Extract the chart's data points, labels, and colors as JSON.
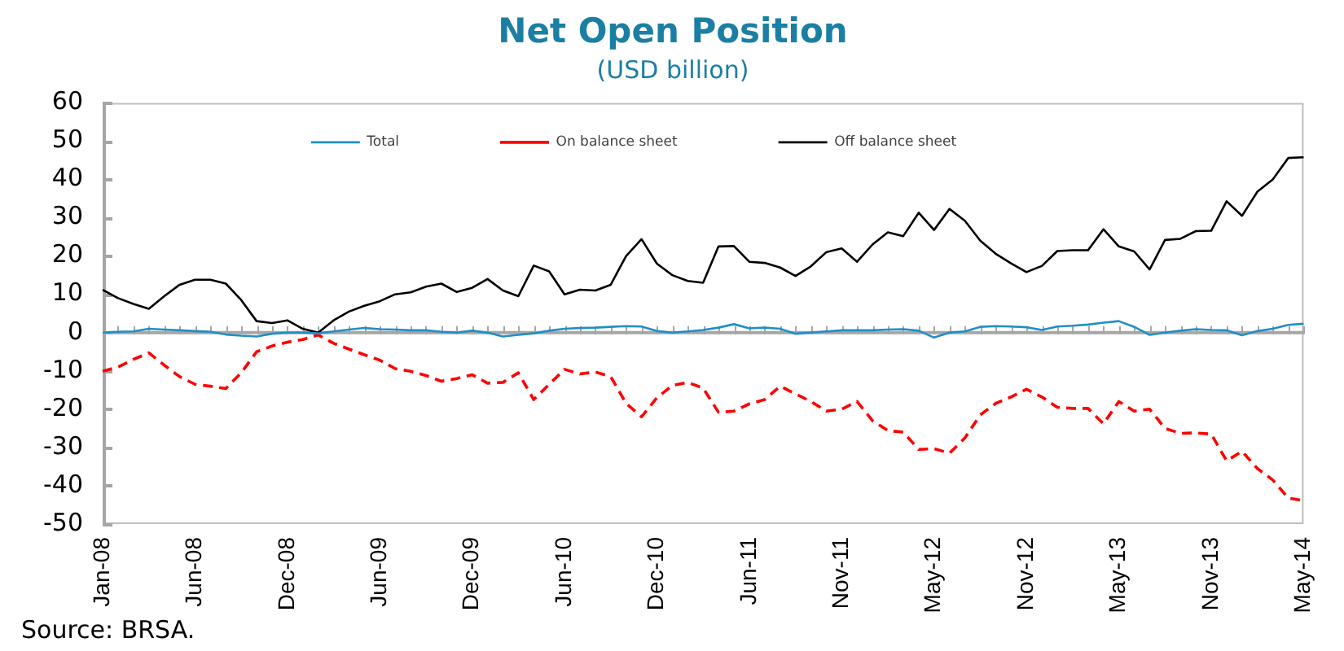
{
  "chart_data": {
    "type": "line",
    "title": "Net Open Position",
    "subtitle": "(USD billion)",
    "categories": [
      "Jan-08",
      null,
      null,
      null,
      null,
      null,
      "Jun-08",
      null,
      null,
      null,
      null,
      null,
      "Dec-08",
      null,
      null,
      null,
      null,
      null,
      "Jun-09",
      null,
      null,
      null,
      null,
      null,
      "Dec-09",
      null,
      null,
      null,
      null,
      null,
      "Jun-10",
      null,
      null,
      null,
      null,
      null,
      "Dec-10",
      null,
      null,
      null,
      null,
      null,
      "Jun-11",
      null,
      null,
      null,
      null,
      null,
      "Nov-11",
      null,
      null,
      null,
      null,
      null,
      "May-12",
      null,
      null,
      null,
      null,
      null,
      "Nov-12",
      null,
      null,
      null,
      null,
      null,
      "May-13",
      null,
      null,
      null,
      null,
      null,
      "Nov-13",
      null,
      null,
      null,
      null,
      null,
      "May-14"
    ],
    "series": [
      {
        "name": "Total",
        "color": "#1f8fc4",
        "line_style": "solid",
        "values": [
          0,
          0.2,
          0.3,
          1,
          0.8,
          0.6,
          0.4,
          0.2,
          -0.5,
          -0.8,
          -1,
          -0.3,
          0,
          0,
          -0.2,
          0.3,
          0.8,
          1.2,
          0.9,
          0.8,
          0.6,
          0.6,
          0.2,
          0,
          0.5,
          0,
          -1,
          -0.6,
          -0.2,
          0.5,
          1,
          1.2,
          1.3,
          1.5,
          1.7,
          1.6,
          0.4,
          0,
          0.3,
          0.7,
          1.3,
          2.2,
          1.1,
          1.3,
          1,
          -0.3,
          0,
          0.3,
          0.6,
          0.6,
          0.6,
          0.8,
          0.9,
          0.5,
          -1.3,
          0,
          0.3,
          1.5,
          1.7,
          1.6,
          1.4,
          0.7,
          1.6,
          1.8,
          2.1,
          2.6,
          3,
          1.5,
          -0.6,
          0,
          0.5,
          0.9,
          0.7,
          0.6,
          -0.7,
          0.4,
          1,
          2,
          2.3
        ]
      },
      {
        "name": "On balance sheet",
        "color": "#ff0000",
        "line_style": "dashed",
        "values": [
          -10.1,
          -9,
          -7,
          -5.3,
          -8.5,
          -11.5,
          -13.5,
          -14,
          -14.6,
          -10.5,
          -5,
          -3.5,
          -2.5,
          -1.8,
          -0.6,
          -2.8,
          -4.3,
          -5.8,
          -7.2,
          -9.4,
          -10.1,
          -11.2,
          -12.7,
          -12,
          -11,
          -13.2,
          -13,
          -10.5,
          -17.5,
          -13.5,
          -9.6,
          -10.8,
          -10.3,
          -11.5,
          -18.5,
          -22,
          -17,
          -13.8,
          -13,
          -14.5,
          -20.8,
          -20.5,
          -18.6,
          -17.5,
          -14,
          -16,
          -18,
          -20.5,
          -20,
          -18,
          -23,
          -25.6,
          -26,
          -30.5,
          -30.3,
          -31.5,
          -27.5,
          -21.5,
          -18.5,
          -16.8,
          -14.8,
          -16.8,
          -19.5,
          -19.8,
          -19.8,
          -23.8,
          -18,
          -20.5,
          -20,
          -25,
          -26.3,
          -26.2,
          -26.5,
          -33.5,
          -31,
          -35.5,
          -38.5,
          -43.2,
          -43.9
        ]
      },
      {
        "name": "Off balance sheet",
        "color": "#000000",
        "line_style": "solid",
        "values": [
          11.2,
          9,
          7.5,
          6.2,
          9.5,
          12.5,
          13.8,
          13.8,
          12.8,
          8.5,
          3,
          2.5,
          3.2,
          1,
          0,
          3.2,
          5.5,
          7,
          8.2,
          10,
          10.5,
          12,
          12.8,
          10.6,
          11.7,
          14,
          11,
          9.5,
          17.5,
          16,
          10,
          11.2,
          11,
          12.5,
          20,
          24.4,
          18,
          15,
          13.5,
          13,
          22.5,
          22.6,
          18.5,
          18.2,
          17,
          14.8,
          17.3,
          21,
          22,
          18.5,
          23,
          26.2,
          25.2,
          31.3,
          26.8,
          32.3,
          29.2,
          24,
          20.6,
          18.1,
          15.8,
          17.4,
          21.3,
          21.5,
          21.5,
          27,
          22.5,
          21.2,
          16.5,
          24.2,
          24.5,
          26.5,
          26.6,
          34.3,
          30.5,
          36.8,
          40,
          45.6,
          45.8
        ]
      }
    ],
    "ylim": [
      -50,
      60
    ],
    "yticks": [
      -50,
      -40,
      -30,
      -20,
      -10,
      0,
      10,
      20,
      30,
      40,
      50,
      60
    ],
    "ref_lines": [
      {
        "axis": "y",
        "value": 0,
        "color": "#a6a6a6",
        "line_style": "solid"
      }
    ],
    "grid": false,
    "legend": "top",
    "marker": "none",
    "annotations": [
      "Source: BRSA."
    ]
  }
}
